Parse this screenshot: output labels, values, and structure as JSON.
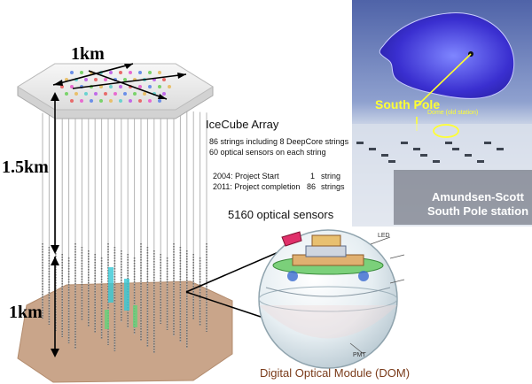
{
  "detector": {
    "top_scale": "1km",
    "depth_ice": "1.5km",
    "depth_array": "1km"
  },
  "info": {
    "title": "IceCube Array",
    "line1": "86 strings including 8 DeepCore strings",
    "line2": "60 optical sensors on each string",
    "timeline": [
      {
        "year": "2004:",
        "event": "Project Start",
        "count": "1",
        "unit": "string"
      },
      {
        "year": "2011:",
        "event": "Project completion",
        "count": "86",
        "unit": "strings"
      }
    ],
    "sensors": "5160 optical sensors"
  },
  "photo": {
    "south_pole": "South Pole",
    "dome": "Dome (old station)",
    "station_line1": "Amundsen-Scott",
    "station_line2": "South Pole station"
  },
  "dom": {
    "led": "LED",
    "pmt": "PMT",
    "caption": "Digital Optical Module (DOM)"
  },
  "colors": {
    "surface_top": "#eeeeee",
    "bedrock": "#c9a58a",
    "string": "#9a9a9a",
    "photo_sky": "#6a7fbf",
    "antarctica": "#3a2fd0",
    "annotation": "#ffff33",
    "dom_caption": "#7a3b1a"
  }
}
